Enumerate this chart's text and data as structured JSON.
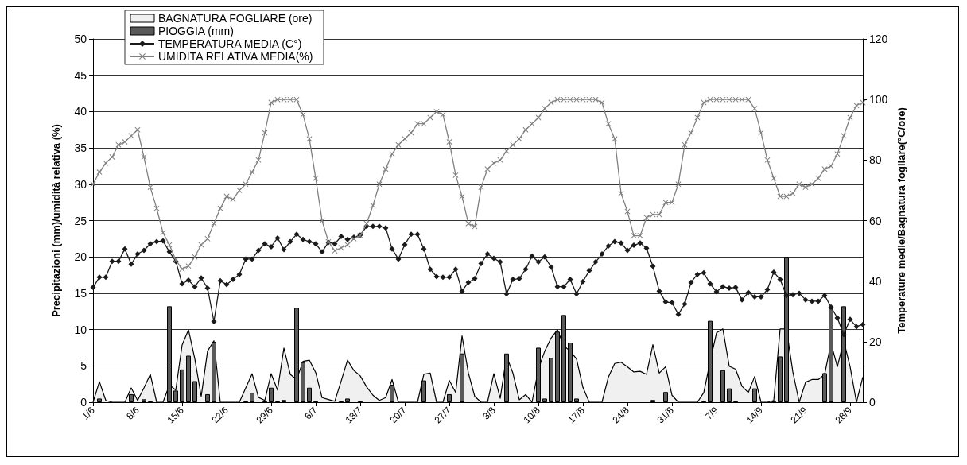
{
  "chart_data": {
    "type": "line",
    "ylabel": "Precipitazioni (mm)/umidità relativa (%)",
    "y2label": "Temperature medie/Bagnatura fogliare(°C/ore)",
    "categories": [
      "1/6",
      null,
      null,
      null,
      null,
      null,
      null,
      "8/6",
      null,
      null,
      null,
      null,
      null,
      null,
      "15/6",
      null,
      null,
      null,
      null,
      null,
      null,
      "22/6",
      null,
      null,
      null,
      null,
      null,
      null,
      "29/6",
      null,
      null,
      null,
      null,
      null,
      null,
      "6/7",
      null,
      null,
      null,
      null,
      null,
      null,
      "13/7",
      null,
      null,
      null,
      null,
      null,
      null,
      "20/7",
      null,
      null,
      null,
      null,
      null,
      null,
      "27/7",
      null,
      null,
      null,
      null,
      null,
      null,
      "3/8",
      null,
      null,
      null,
      null,
      null,
      null,
      "10/8",
      null,
      null,
      null,
      null,
      null,
      null,
      "17/8",
      null,
      null,
      null,
      null,
      null,
      null,
      "24/8",
      null,
      null,
      null,
      null,
      null,
      null,
      "31/8",
      null,
      null,
      null,
      null,
      null,
      null,
      "7/9",
      null,
      null,
      null,
      null,
      null,
      null,
      "14/9",
      null,
      null,
      null,
      null,
      null,
      null,
      "21/9",
      null,
      null,
      null,
      null,
      null,
      null,
      "28/9",
      null,
      null
    ],
    "series": [
      {
        "name": "BAGNATURA FOGLIARE (ore)",
        "type": "area",
        "color": "#f0f0f0",
        "axis": "y2",
        "values": [
          0,
          6.8,
          0.6,
          0,
          0,
          0,
          4.7,
          0.6,
          4.7,
          9.2,
          0,
          0,
          5.7,
          4.0,
          18.9,
          23.9,
          14.3,
          1.9,
          16.9,
          20.3,
          0,
          0,
          0,
          0,
          4.7,
          9.4,
          1.6,
          0.6,
          9.4,
          4.0,
          17.9,
          9.2,
          7.5,
          13.5,
          13.9,
          9.8,
          1.5,
          0.9,
          0.3,
          7,
          13.9,
          10.5,
          8.7,
          5.1,
          2.3,
          0.6,
          1.5,
          7.5,
          0,
          0,
          0,
          0,
          9.2,
          9.6,
          0,
          0,
          7.2,
          3.2,
          21.9,
          9.6,
          1.9,
          0,
          0,
          9.4,
          1.3,
          15.2,
          9.6,
          0.8,
          2.5,
          0,
          10.9,
          16.9,
          21.2,
          23.9,
          18.6,
          16.9,
          14.3,
          4.9,
          0,
          0,
          0,
          8.3,
          12.8,
          13.2,
          11.7,
          10.0,
          10.2,
          9.2,
          19.0,
          9.6,
          11.7,
          2.3,
          0,
          0,
          0,
          0,
          3.2,
          13.5,
          22.9,
          24.2,
          11.9,
          10.9,
          5.3,
          3.2,
          8.5,
          0,
          0,
          0.6,
          24.2,
          24.2,
          10.0,
          0,
          6.6,
          7.5,
          7.5,
          9.2,
          19.5,
          11.7,
          20.3,
          11.7,
          0,
          8.3
        ]
      },
      {
        "name": "PIOGGIA (mm)",
        "type": "bar",
        "color": "#595959",
        "values": [
          null,
          0.5,
          null,
          null,
          null,
          null,
          1.1,
          null,
          0.4,
          0.2,
          null,
          null,
          13.2,
          1.6,
          4.5,
          6.4,
          2.9,
          null,
          1.1,
          8.3,
          null,
          null,
          null,
          null,
          0.2,
          1.3,
          null,
          0.2,
          2.0,
          0.2,
          0.3,
          null,
          13.0,
          5.5,
          2.0,
          0.2,
          null,
          null,
          null,
          0.2,
          0.5,
          null,
          0.2,
          null,
          null,
          null,
          null,
          2.4,
          null,
          null,
          null,
          null,
          3.0,
          null,
          null,
          null,
          1.1,
          null,
          6.7,
          null,
          null,
          null,
          null,
          null,
          null,
          6.7,
          null,
          null,
          null,
          null,
          7.5,
          0.5,
          6.1,
          9.7,
          12.0,
          8.2,
          0.5,
          null,
          null,
          null,
          null,
          null,
          null,
          null,
          null,
          null,
          null,
          null,
          0.3,
          null,
          1.4,
          null,
          null,
          null,
          null,
          null,
          0.2,
          11.2,
          null,
          4.4,
          1.9,
          0.2,
          null,
          null,
          1.9,
          null,
          null,
          0.2,
          6.3,
          20.0,
          null,
          null,
          null,
          null,
          null,
          4.0,
          12.9,
          null,
          13.2,
          null,
          null,
          null
        ]
      },
      {
        "name": "TEMPERATURA MEDIA (C°)",
        "color": "#1a1a1a",
        "marker": "diamond",
        "values": [
          15.8,
          17.2,
          17.2,
          19.4,
          19.4,
          21.1,
          19.0,
          20.4,
          20.9,
          21.8,
          22.1,
          22.2,
          20.7,
          19.4,
          16.3,
          16.8,
          15.9,
          17.1,
          15.7,
          11.1,
          16.7,
          16.2,
          16.9,
          17.6,
          19.7,
          19.7,
          20.9,
          21.8,
          21.4,
          22.6,
          21.0,
          22.1,
          23.1,
          22.4,
          22.1,
          21.8,
          20.7,
          22.0,
          21.8,
          22.8,
          22.4,
          22.7,
          23.0,
          24.2,
          24.2,
          24.2,
          24.0,
          21.1,
          19.7,
          21.7,
          23.1,
          23.1,
          21.1,
          18.3,
          17.3,
          17.2,
          17.2,
          18.3,
          15.3,
          16.5,
          17.0,
          19.1,
          20.4,
          19.8,
          19.3,
          14.9,
          16.9,
          17.0,
          18.3,
          20.1,
          19.3,
          20.0,
          18.6,
          15.9,
          15.9,
          16.9,
          14.9,
          16.6,
          18.1,
          19.3,
          20.4,
          21.5,
          22.1,
          21.9,
          20.9,
          21.6,
          21.9,
          21.2,
          18.7,
          15.3,
          13.8,
          13.7,
          12.1,
          13.5,
          16.5,
          17.6,
          17.8,
          16.3,
          15.2,
          15.9,
          15.7,
          15.8,
          14.1,
          15.1,
          14.5,
          14.5,
          15.5,
          17.9,
          16.9,
          14.7,
          14.8,
          15.0,
          14.1,
          13.9,
          13.9,
          14.7,
          13.1,
          11.6,
          9.3,
          11.4,
          10.4,
          10.7
        ]
      },
      {
        "name": "UMIDITA RELATIVA MEDIA(%)",
        "color": "#808080",
        "marker": "cross",
        "axis": "y2",
        "values": [
          72,
          76,
          79,
          81,
          85,
          86,
          88,
          90,
          81,
          71,
          64,
          56,
          52,
          47,
          44,
          45,
          48,
          52,
          54,
          59,
          64,
          68,
          67,
          70,
          72,
          76,
          80,
          89,
          99,
          100,
          100,
          100,
          100,
          95,
          87,
          74,
          60,
          53,
          50,
          51,
          52,
          54,
          55,
          59,
          65,
          72,
          77,
          82,
          85,
          87,
          89,
          92,
          92,
          94,
          96,
          95,
          86,
          75,
          68,
          59,
          58,
          71,
          77,
          79,
          80,
          83,
          85,
          87,
          90,
          92,
          94,
          97,
          99,
          100,
          100,
          100,
          100,
          100,
          100,
          100,
          99,
          92,
          87,
          69,
          63,
          55,
          55,
          61,
          62,
          62,
          66,
          66,
          72,
          85,
          89,
          94,
          99,
          100,
          100,
          100,
          100,
          100,
          100,
          100,
          97,
          89,
          80,
          74,
          68,
          68,
          69,
          72,
          71,
          72,
          74,
          77,
          78,
          82,
          88,
          94,
          98,
          99
        ]
      }
    ],
    "ylim": [
      0,
      50
    ],
    "yticks": [
      0,
      5,
      10,
      15,
      20,
      25,
      30,
      35,
      40,
      45,
      50
    ],
    "y2lim": [
      0,
      120
    ],
    "y2ticks": [
      0,
      20,
      40,
      60,
      80,
      100,
      120
    ],
    "grid": "y",
    "legend": "top left"
  }
}
